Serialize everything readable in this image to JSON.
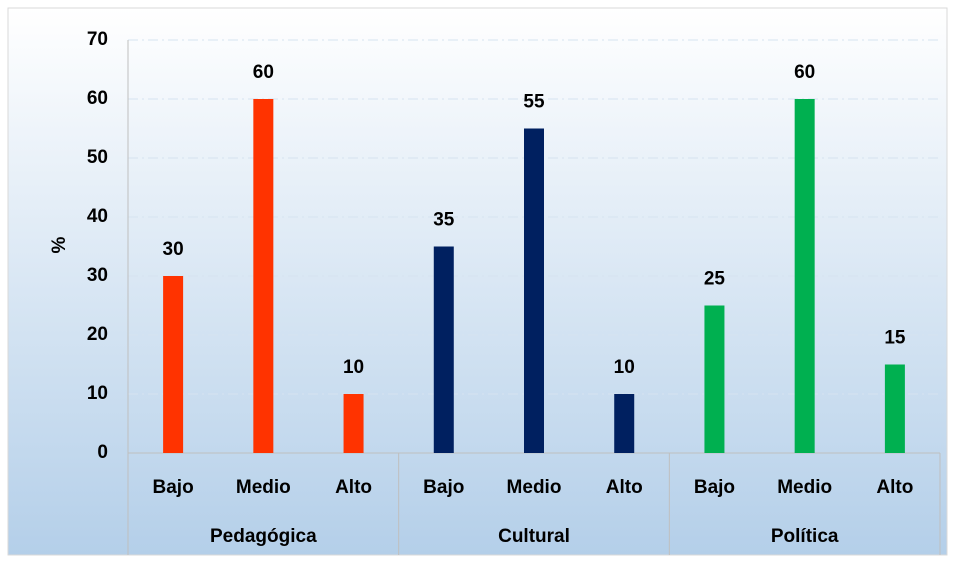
{
  "chart_data": {
    "type": "bar",
    "y_label": "%",
    "groups": [
      {
        "name": "Pedagógica",
        "color": "#ff3300",
        "categories": [
          "Bajo",
          "Medio",
          "Alto"
        ],
        "values": [
          30,
          60,
          10
        ]
      },
      {
        "name": "Cultural",
        "color": "#002060",
        "categories": [
          "Bajo",
          "Medio",
          "Alto"
        ],
        "values": [
          35,
          55,
          10
        ]
      },
      {
        "name": "Política",
        "color": "#00b050",
        "categories": [
          "Bajo",
          "Medio",
          "Alto"
        ],
        "values": [
          25,
          60,
          15
        ]
      }
    ],
    "ylim": [
      0,
      70
    ],
    "yticks": [
      0,
      10,
      20,
      30,
      40,
      50,
      60,
      70
    ],
    "grid": true
  }
}
